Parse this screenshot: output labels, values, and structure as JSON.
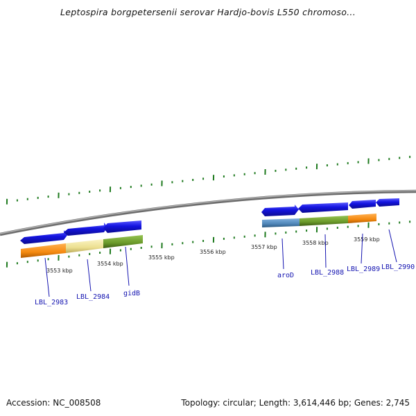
{
  "title": "Leptospira borgpetersenii serovar Hardjo-bovis L550 chromoso...",
  "footer": {
    "accession": "Accession: NC_008508",
    "summary": "Topology: circular; Length: 3,614,446 bp; Genes: 2,745"
  },
  "colors": {
    "gene_arrow": "#1414e0",
    "tick": "#1e7a1e",
    "backbone": "#8a8a8a",
    "orange": "#f58a10",
    "pale_yellow": "#ecdf90",
    "olive": "#6a9a2a",
    "steel_blue": "#4f86b8",
    "label": "#1212b0"
  },
  "scale_labels": [
    "3553 kbp",
    "3554 kbp",
    "3555 kbp",
    "3556 kbp",
    "3557 kbp",
    "3558 kbp",
    "3559 kbp"
  ],
  "genes": [
    "LBL_2983",
    "LBL_2984",
    "gidB",
    "aroD",
    "LBL_2988",
    "LBL_2989",
    "LBL_2990"
  ]
}
